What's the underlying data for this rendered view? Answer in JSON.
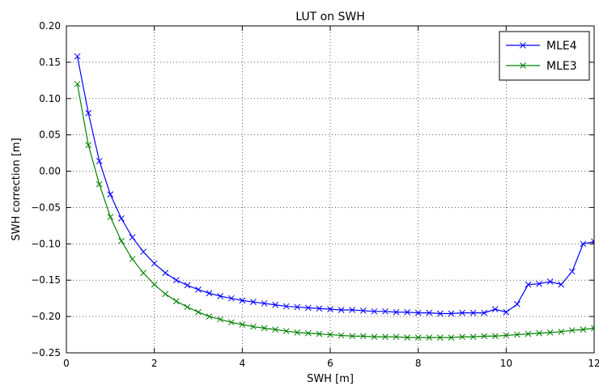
{
  "chart_data": {
    "type": "line",
    "title": "LUT on SWH",
    "xlabel": "SWH [m]",
    "ylabel": "SWH correction [m]",
    "xlim": [
      0,
      12
    ],
    "ylim": [
      -0.25,
      0.2
    ],
    "xticks": [
      0,
      2,
      4,
      6,
      8,
      10,
      12
    ],
    "yticks": [
      -0.25,
      -0.2,
      -0.15,
      -0.1,
      -0.05,
      0.0,
      0.05,
      0.1,
      0.15,
      0.2
    ],
    "xtick_labels": [
      "0",
      "2",
      "4",
      "6",
      "8",
      "10",
      "12"
    ],
    "ytick_labels": [
      "−0.25",
      "−0.20",
      "−0.15",
      "−0.10",
      "−0.05",
      "0.00",
      "0.05",
      "0.10",
      "0.15",
      "0.20"
    ],
    "grid": true,
    "legend_position": "top-right",
    "x": [
      0.25,
      0.5,
      0.75,
      1.0,
      1.25,
      1.5,
      1.75,
      2.0,
      2.25,
      2.5,
      2.75,
      3.0,
      3.25,
      3.5,
      3.75,
      4.0,
      4.25,
      4.5,
      4.75,
      5.0,
      5.25,
      5.5,
      5.75,
      6.0,
      6.25,
      6.5,
      6.75,
      7.0,
      7.25,
      7.5,
      7.75,
      8.0,
      8.25,
      8.5,
      8.75,
      9.0,
      9.25,
      9.5,
      9.75,
      10.0,
      10.25,
      10.5,
      10.75,
      11.0,
      11.25,
      11.5,
      11.75,
      12.0
    ],
    "series": [
      {
        "name": "MLE4",
        "color": "#0000ff",
        "values": [
          0.158,
          0.08,
          0.014,
          -0.032,
          -0.065,
          -0.091,
          -0.111,
          -0.127,
          -0.14,
          -0.15,
          -0.157,
          -0.163,
          -0.168,
          -0.172,
          -0.175,
          -0.178,
          -0.18,
          -0.182,
          -0.184,
          -0.186,
          -0.187,
          -0.188,
          -0.189,
          -0.19,
          -0.191,
          -0.191,
          -0.192,
          -0.193,
          -0.193,
          -0.194,
          -0.194,
          -0.195,
          -0.195,
          -0.196,
          -0.196,
          -0.195,
          -0.195,
          -0.195,
          -0.19,
          -0.194,
          -0.183,
          -0.156,
          -0.155,
          -0.152,
          -0.156,
          -0.138,
          -0.1,
          -0.097
        ]
      },
      {
        "name": "MLE3",
        "color": "#008000",
        "values": [
          0.12,
          0.036,
          -0.018,
          -0.063,
          -0.096,
          -0.121,
          -0.14,
          -0.156,
          -0.169,
          -0.179,
          -0.187,
          -0.194,
          -0.2,
          -0.204,
          -0.208,
          -0.211,
          -0.214,
          -0.216,
          -0.218,
          -0.22,
          -0.222,
          -0.223,
          -0.224,
          -0.225,
          -0.226,
          -0.227,
          -0.227,
          -0.228,
          -0.228,
          -0.228,
          -0.229,
          -0.229,
          -0.229,
          -0.229,
          -0.229,
          -0.228,
          -0.228,
          -0.227,
          -0.227,
          -0.226,
          -0.225,
          -0.224,
          -0.223,
          -0.222,
          -0.221,
          -0.219,
          -0.218,
          -0.216
        ]
      }
    ]
  }
}
